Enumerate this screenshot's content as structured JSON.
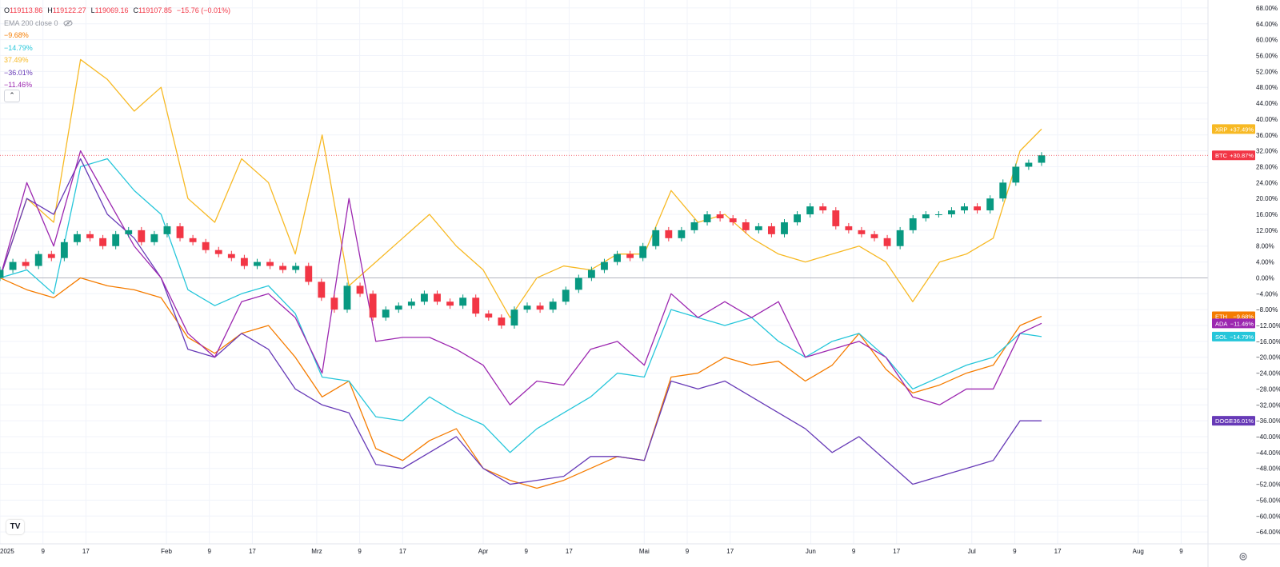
{
  "legend": {
    "ohlc": [
      {
        "key": "O",
        "value": "119113.86"
      },
      {
        "key": "H",
        "value": "119122.27"
      },
      {
        "key": "L",
        "value": "119069.16"
      },
      {
        "key": "C",
        "value": "119107.85"
      },
      {
        "key": "",
        "value": "−15.76 (−0.01%)"
      }
    ],
    "ema_label": "EMA 200 close 0",
    "pcts": [
      {
        "text": "−9.68%",
        "color": "#f57c00"
      },
      {
        "text": "−14.79%",
        "color": "#26c6da"
      },
      {
        "text": "37.49%",
        "color": "#f7b924"
      },
      {
        "text": "−36.01%",
        "color": "#673ab7"
      },
      {
        "text": "−11.46%",
        "color": "#9c27b0"
      }
    ],
    "collapse_icon": "chevron-up-icon"
  },
  "colors": {
    "up": "#089981",
    "down": "#f23645",
    "grid": "#f0f3fa",
    "axis_text": "#131722"
  },
  "chart_data": {
    "type": "line",
    "title": "",
    "x": [
      "2025-01-01",
      "2025-01-06",
      "2025-01-11",
      "2025-01-16",
      "2025-01-21",
      "2025-01-26",
      "2025-01-31",
      "2025-02-05",
      "2025-02-10",
      "2025-02-15",
      "2025-02-20",
      "2025-02-25",
      "2025-03-02",
      "2025-03-07",
      "2025-03-12",
      "2025-03-17",
      "2025-03-22",
      "2025-03-27",
      "2025-04-01",
      "2025-04-06",
      "2025-04-11",
      "2025-04-16",
      "2025-04-21",
      "2025-04-26",
      "2025-05-01",
      "2025-05-06",
      "2025-05-11",
      "2025-05-16",
      "2025-05-21",
      "2025-05-26",
      "2025-05-31",
      "2025-06-05",
      "2025-06-10",
      "2025-06-15",
      "2025-06-20",
      "2025-06-25",
      "2025-06-30",
      "2025-07-05",
      "2025-07-10",
      "2025-07-14"
    ],
    "series": [
      {
        "name": "BTC",
        "color": "#f23645",
        "values": [
          0,
          3,
          4,
          10,
          11,
          11,
          8,
          4,
          2,
          3,
          3,
          4,
          -2,
          -6,
          -6,
          -7,
          -4,
          -6,
          -7,
          -11,
          -8,
          -6,
          -5,
          2,
          5,
          12,
          11,
          14,
          16,
          15,
          11,
          14,
          16,
          12,
          10,
          16,
          17,
          18,
          28,
          30.87
        ]
      },
      {
        "name": "ETH",
        "color": "#f57c00",
        "values": [
          0,
          -3,
          -5,
          0,
          -2,
          -3,
          -5,
          -15,
          -19,
          -14,
          -12,
          -20,
          -30,
          -26,
          -43,
          -46,
          -41,
          -38,
          -48,
          -51,
          -53,
          -51,
          -48,
          -45,
          -46,
          -25,
          -24,
          -20,
          -22,
          -21,
          -26,
          -22,
          -14,
          -23,
          -29,
          -27,
          -24,
          -22,
          -12,
          -9.68
        ]
      },
      {
        "name": "SOL",
        "color": "#26c6da",
        "values": [
          0,
          2,
          -4,
          28,
          30,
          22,
          16,
          -3,
          -7,
          -4,
          -2,
          -9,
          -25,
          -26,
          -35,
          -36,
          -30,
          -34,
          -37,
          -44,
          -38,
          -34,
          -30,
          -24,
          -25,
          -8,
          -10,
          -12,
          -10,
          -16,
          -20,
          -16,
          -14,
          -20,
          -28,
          -25,
          -22,
          -20,
          -14,
          -14.79
        ]
      },
      {
        "name": "XRP",
        "color": "#f7b924",
        "values": [
          0,
          20,
          14,
          55,
          50,
          42,
          48,
          20,
          14,
          30,
          24,
          6,
          36,
          -2,
          4,
          10,
          16,
          8,
          2,
          -10,
          0,
          3,
          2,
          6,
          6,
          22,
          14,
          16,
          10,
          6,
          4,
          6,
          8,
          4,
          -6,
          4,
          6,
          10,
          32,
          37.49
        ]
      },
      {
        "name": "DOGE",
        "color": "#673ab7",
        "values": [
          0,
          20,
          16,
          30,
          16,
          10,
          0,
          -18,
          -20,
          -14,
          -18,
          -28,
          -32,
          -34,
          -47,
          -48,
          -44,
          -40,
          -48,
          -52,
          -51,
          -50,
          -45,
          -45,
          -46,
          -26,
          -28,
          -26,
          -30,
          -34,
          -38,
          -44,
          -40,
          -46,
          -52,
          -50,
          -48,
          -46,
          -36,
          -36.01
        ]
      },
      {
        "name": "ADA",
        "color": "#9c27b0",
        "values": [
          0,
          24,
          8,
          32,
          20,
          8,
          0,
          -14,
          -20,
          -6,
          -4,
          -10,
          -24,
          20,
          -16,
          -15,
          -15,
          -18,
          -22,
          -32,
          -26,
          -27,
          -18,
          -16,
          -22,
          -4,
          -10,
          -6,
          -10,
          -6,
          -20,
          -18,
          -16,
          -20,
          -30,
          -32,
          -28,
          -28,
          -14,
          -11.46
        ]
      }
    ],
    "x_tick_labels": [
      "2025",
      "9",
      "17",
      "Feb",
      "9",
      "17",
      "Mrz",
      "9",
      "17",
      "Apr",
      "9",
      "17",
      "Mai",
      "9",
      "17",
      "Jun",
      "9",
      "17",
      "Jul",
      "9",
      "17",
      "Aug",
      "9"
    ],
    "x_tick_dates": [
      "2025-01-01",
      "2025-01-09",
      "2025-01-17",
      "2025-02-01",
      "2025-02-09",
      "2025-02-17",
      "2025-03-01",
      "2025-03-09",
      "2025-03-17",
      "2025-04-01",
      "2025-04-09",
      "2025-04-17",
      "2025-05-01",
      "2025-05-09",
      "2025-05-17",
      "2025-06-01",
      "2025-06-09",
      "2025-06-17",
      "2025-07-01",
      "2025-07-09",
      "2025-07-17",
      "2025-08-01",
      "2025-08-09"
    ],
    "xlim": [
      "2025-01-01",
      "2025-08-14"
    ],
    "y_ticks": [
      "68.00%",
      "64.00%",
      "60.00%",
      "56.00%",
      "52.00%",
      "48.00%",
      "44.00%",
      "40.00%",
      "36.00%",
      "32.00%",
      "28.00%",
      "24.00%",
      "20.00%",
      "16.00%",
      "12.00%",
      "8.00%",
      "4.00%",
      "0.00%",
      "−4.00%",
      "−8.00%",
      "−12.00%",
      "−16.00%",
      "−20.00%",
      "−24.00%",
      "−28.00%",
      "−32.00%",
      "−36.00%",
      "−40.00%",
      "−44.00%",
      "−48.00%",
      "−52.00%",
      "−56.00%",
      "−60.00%",
      "−64.00%"
    ],
    "ylim": [
      -67,
      70
    ],
    "grid": true,
    "legend_position": "top-left",
    "price_tags": [
      {
        "name": "XRP",
        "text": "+37.49%",
        "value": 37.49,
        "color": "#f7b924"
      },
      {
        "name": "BTC",
        "text": "+30.87%",
        "value": 30.87,
        "color": "#f23645"
      },
      {
        "name": "ETH",
        "text": "−9.68%",
        "value": -9.68,
        "color": "#f57c00"
      },
      {
        "name": "ADA",
        "text": "−11.46%",
        "value": -11.46,
        "color": "#9c27b0"
      },
      {
        "name": "SOL",
        "text": "−14.79%",
        "value": -14.79,
        "color": "#26c6da"
      },
      {
        "name": "DOGE",
        "text": "−36.01%",
        "value": -36.01,
        "color": "#673ab7"
      }
    ],
    "candles_series": "BTC",
    "candles": [
      [
        0,
        2
      ],
      [
        2,
        4
      ],
      [
        4,
        3
      ],
      [
        3,
        6
      ],
      [
        6,
        5
      ],
      [
        5,
        9
      ],
      [
        9,
        11
      ],
      [
        11,
        10
      ],
      [
        10,
        8
      ],
      [
        8,
        11
      ],
      [
        11,
        12
      ],
      [
        12,
        9
      ],
      [
        9,
        11
      ],
      [
        11,
        13
      ],
      [
        13,
        10
      ],
      [
        10,
        9
      ],
      [
        9,
        7
      ],
      [
        7,
        6
      ],
      [
        6,
        5
      ],
      [
        5,
        3
      ],
      [
        3,
        4
      ],
      [
        4,
        3
      ],
      [
        3,
        2
      ],
      [
        2,
        3
      ],
      [
        3,
        -1
      ],
      [
        -1,
        -5
      ],
      [
        -5,
        -8
      ],
      [
        -8,
        -2
      ],
      [
        -2,
        -4
      ],
      [
        -4,
        -10
      ],
      [
        -10,
        -8
      ],
      [
        -8,
        -7
      ],
      [
        -7,
        -6
      ],
      [
        -6,
        -4
      ],
      [
        -4,
        -6
      ],
      [
        -6,
        -7
      ],
      [
        -7,
        -5
      ],
      [
        -5,
        -9
      ],
      [
        -9,
        -10
      ],
      [
        -10,
        -12
      ],
      [
        -12,
        -8
      ],
      [
        -8,
        -7
      ],
      [
        -7,
        -8
      ],
      [
        -8,
        -6
      ],
      [
        -6,
        -3
      ],
      [
        -3,
        0
      ],
      [
        0,
        2
      ],
      [
        2,
        4
      ],
      [
        4,
        6
      ],
      [
        6,
        5
      ],
      [
        5,
        8
      ],
      [
        8,
        12
      ],
      [
        12,
        10
      ],
      [
        10,
        12
      ],
      [
        12,
        14
      ],
      [
        14,
        16
      ],
      [
        16,
        15
      ],
      [
        15,
        14
      ],
      [
        14,
        12
      ],
      [
        12,
        13
      ],
      [
        13,
        11
      ],
      [
        11,
        14
      ],
      [
        14,
        16
      ],
      [
        16,
        18
      ],
      [
        18,
        17
      ],
      [
        17,
        13
      ],
      [
        13,
        12
      ],
      [
        12,
        11
      ],
      [
        11,
        10
      ],
      [
        10,
        8
      ],
      [
        8,
        12
      ],
      [
        12,
        15
      ],
      [
        15,
        16
      ],
      [
        16,
        16
      ],
      [
        16,
        17
      ],
      [
        17,
        18
      ],
      [
        18,
        17
      ],
      [
        17,
        20
      ],
      [
        20,
        24
      ],
      [
        24,
        28
      ],
      [
        28,
        29
      ],
      [
        29,
        30.87
      ]
    ]
  }
}
